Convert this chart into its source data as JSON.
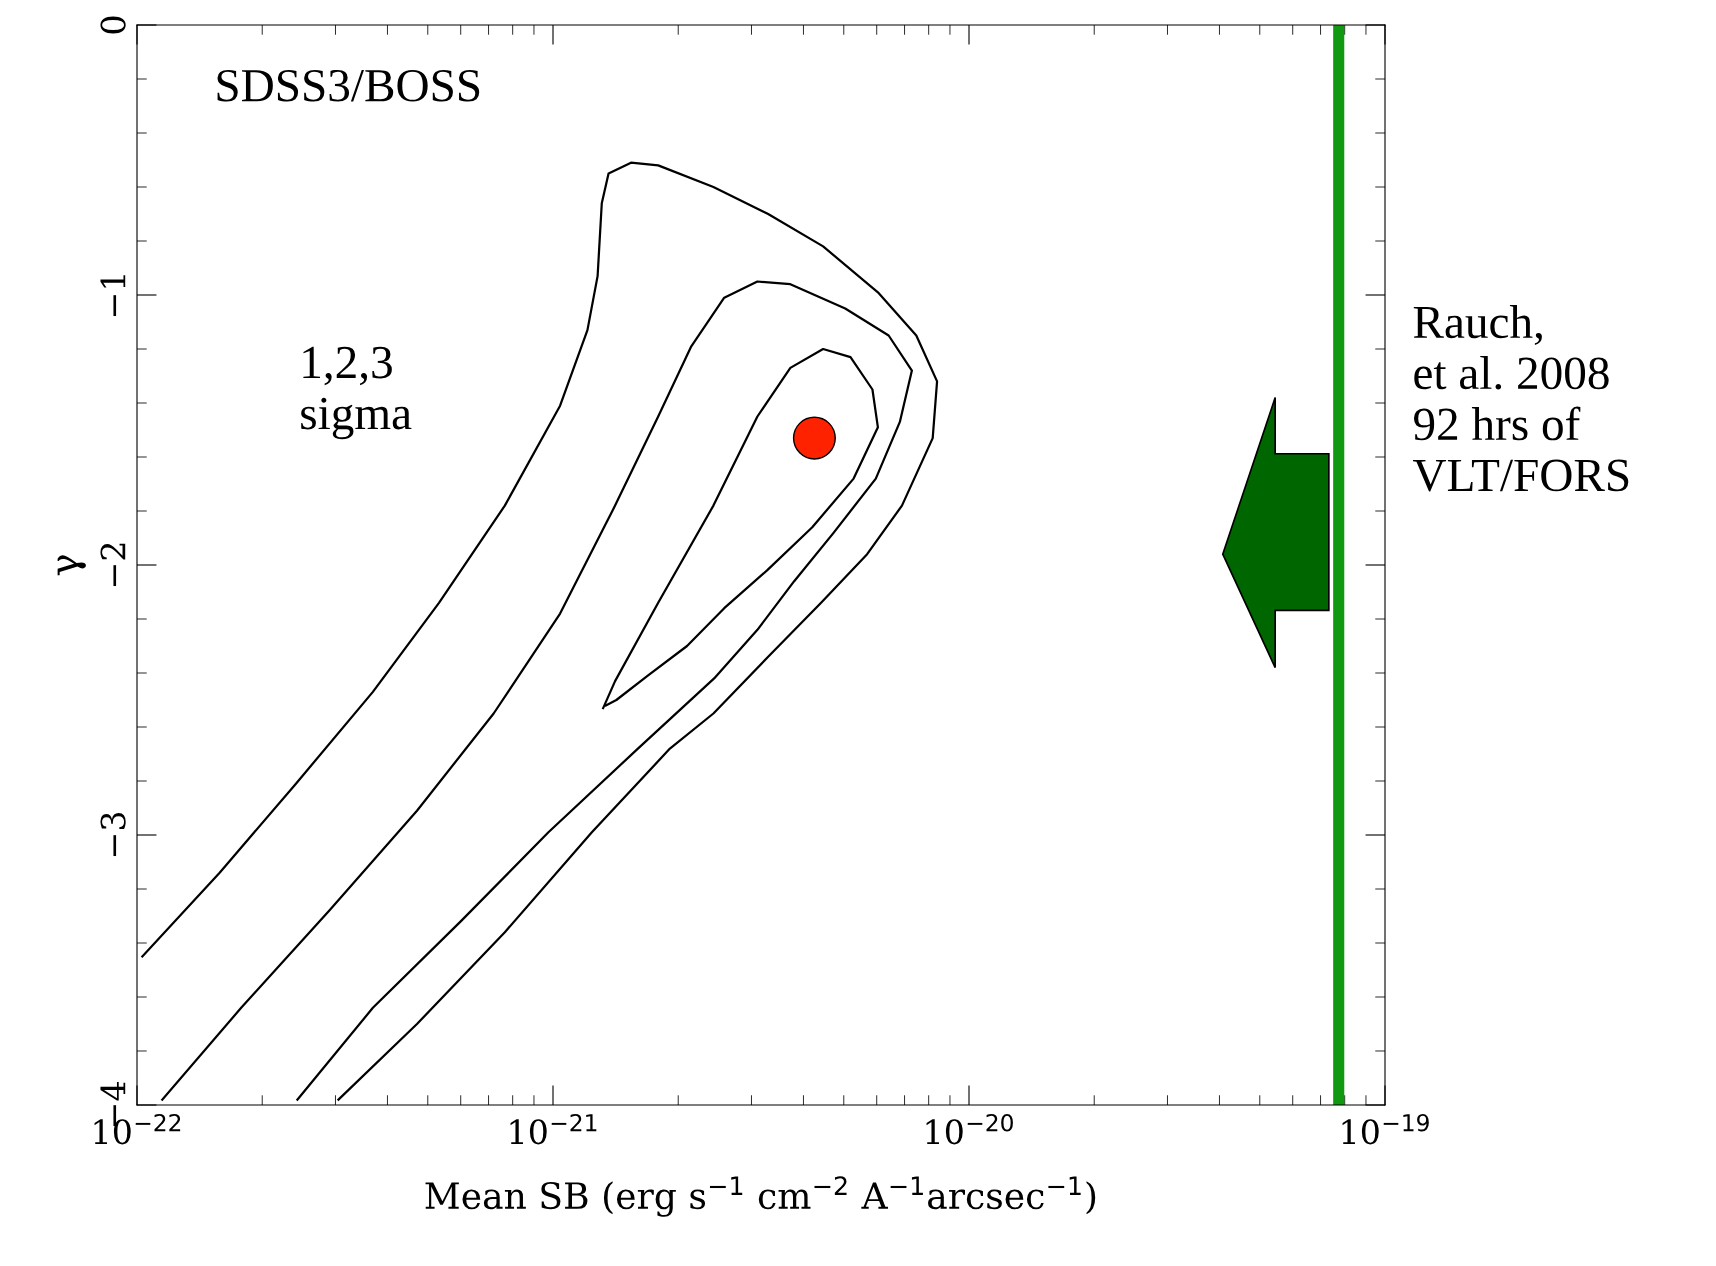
{
  "chart_data": {
    "type": "line",
    "xlabel": "Mean SB (erg s$^{−1}$ cm$^{−2}$ A$^{−1}$arcsec$^{−1}$)",
    "ylabel": "γ",
    "log": "x",
    "xlim": [
      1e-22,
      1e-19
    ],
    "ylim": [
      -4,
      0
    ],
    "xticks": [
      {
        "value": 1e-22,
        "label": "10$^{−22}$"
      },
      {
        "value": 1e-21,
        "label": "10$^{−21}$"
      },
      {
        "value": 1e-20,
        "label": "10$^{−20}$"
      },
      {
        "value": 1e-19,
        "label": "10$^{−19}$"
      }
    ],
    "yticks": [
      {
        "value": -4,
        "label": "−4"
      },
      {
        "value": -3,
        "label": "−3"
      },
      {
        "value": -2,
        "label": "−2"
      },
      {
        "value": -1,
        "label": "−1"
      },
      0
    ],
    "grid": false,
    "legend": false,
    "marker": "none",
    "line_style": "solid",
    "series": [
      {
        "color": "#000000",
        "x": [
          1.03e-22,
          1.58e-22,
          2.41e-22,
          3.69e-22,
          5.32e-22,
          7.66e-22,
          1.04e-21,
          1.21e-21,
          1.28e-21,
          1.31e-21,
          1.36e-21,
          1.54e-21,
          1.79e-21,
          2.43e-21,
          3.29e-21,
          4.46e-21,
          6.04e-21,
          7.47e-21,
          8.38e-21,
          8.18e-21,
          6.9e-21,
          5.69e-21,
          4.41e-21,
          3.29e-21,
          2.43e-21,
          1.91e-21,
          1.24e-21,
          7.66e-22,
          4.71e-22,
          3.05e-22
        ],
        "values": [
          -3.45,
          -3.14,
          -2.81,
          -2.47,
          -2.14,
          -1.78,
          -1.41,
          -1.13,
          -0.93,
          -0.66,
          -0.55,
          -0.51,
          -0.52,
          -0.6,
          -0.7,
          -0.82,
          -0.99,
          -1.15,
          -1.32,
          -1.53,
          -1.78,
          -1.96,
          -2.14,
          -2.34,
          -2.55,
          -2.68,
          -2.99,
          -3.36,
          -3.7,
          -3.98
        ]
      },
      {
        "color": "#000000",
        "x": [
          1.15e-22,
          1.78e-22,
          2.9e-22,
          4.71e-22,
          7.2e-22,
          1.04e-21,
          1.41e-21,
          1.79e-21,
          2.15e-21,
          2.58e-21,
          3.1e-21,
          3.72e-21,
          5.04e-21,
          6.41e-21,
          7.29e-21,
          6.82e-21,
          5.97e-21,
          4.73e-21,
          3.8e-21,
          3.1e-21,
          2.44e-21,
          1.6e-21,
          9.75e-22,
          6e-22,
          3.69e-22,
          2.43e-22
        ],
        "values": [
          -3.98,
          -3.64,
          -3.28,
          -2.91,
          -2.55,
          -2.18,
          -1.78,
          -1.45,
          -1.19,
          -1.01,
          -0.95,
          -0.96,
          -1.05,
          -1.15,
          -1.28,
          -1.47,
          -1.68,
          -1.88,
          -2.06,
          -2.24,
          -2.42,
          -2.68,
          -2.99,
          -3.32,
          -3.64,
          -3.98
        ]
      },
      {
        "color": "#000000",
        "x": [
          1.32e-21,
          1.41e-21,
          1.79e-21,
          2.43e-21,
          3.1e-21,
          3.72e-21,
          4.46e-21,
          5.19e-21,
          5.86e-21,
          6.04e-21,
          5.28e-21,
          4.2e-21,
          3.27e-21,
          2.58e-21,
          2.1e-21,
          1.69e-21,
          1.42e-21,
          1.34e-21
        ],
        "values": [
          -2.53,
          -2.43,
          -2.14,
          -1.78,
          -1.45,
          -1.27,
          -1.2,
          -1.23,
          -1.35,
          -1.49,
          -1.68,
          -1.86,
          -2.02,
          -2.16,
          -2.3,
          -2.41,
          -2.5,
          -2.52
        ]
      },
      {
        "type": "scatter",
        "color": "#ff2200",
        "marker": "circle",
        "x": [
          4.25e-21
        ],
        "values": [
          -1.53
        ]
      }
    ],
    "ref_lines": [
      {
        "axis": "x",
        "value": 7.74e-20,
        "color": "#119911",
        "line_style": "solid"
      }
    ],
    "annotations": [
      "SDSS3/BOSS",
      "1,2,3\nsigma",
      "Rauch,\net al. 2008\n92 hrs of\nVLT/FORS"
    ]
  }
}
